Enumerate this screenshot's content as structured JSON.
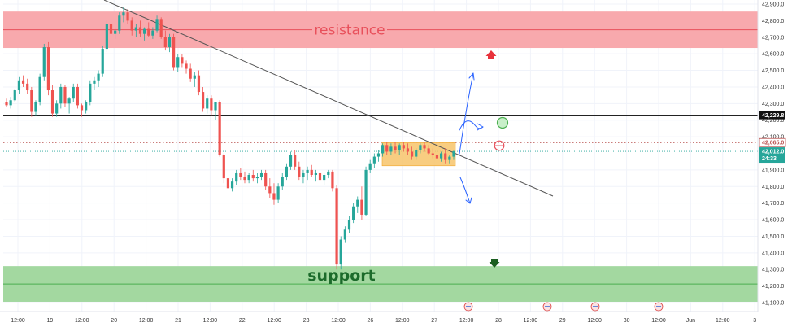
{
  "chart_data": {
    "type": "candlestick",
    "ylim": [
      41100,
      42900
    ],
    "y_ticks": [
      "42,900.0",
      "42,800.0",
      "42,700.0",
      "42,600.0",
      "42,500.0",
      "42,400.0",
      "42,300.0",
      "42,200.0",
      "42,100.0",
      "41,900.0",
      "41,800.0",
      "41,700.0",
      "41,600.0",
      "41,500.0",
      "41,400.0",
      "41,300.0",
      "41,200.0",
      "41,100.0"
    ],
    "x_ticks": [
      "12:00",
      "19",
      "12:00",
      "20",
      "12:00",
      "21",
      "12:00",
      "22",
      "12:00",
      "23",
      "12:00",
      "26",
      "12:00",
      "27",
      "12:00",
      "28",
      "12:00",
      "29",
      "12:00",
      "30",
      "12:00",
      "Jun",
      "12:00",
      "3"
    ],
    "zones": {
      "resistance": {
        "label": "resistance",
        "low": 42635,
        "high": 42855,
        "mid": 42745
      },
      "support": {
        "label": "support",
        "low": 41105,
        "high": 41320,
        "mid": 41212
      }
    },
    "level_line": {
      "value": 42229.8,
      "label": "42,229.8"
    },
    "dotted_level": {
      "value": 42065,
      "label": "42,065.0"
    },
    "current_price": {
      "value": 42012.0,
      "label": "42,012.0",
      "countdown": "24:33"
    },
    "trendline": {
      "start": [
        0,
        42950
      ],
      "end": [
        52,
        41764
      ]
    },
    "consolidation_box": {
      "x_start": 35.0,
      "x_end": 41.5,
      "low": 41925,
      "high": 42065
    },
    "candles": [
      [
        42310,
        42330,
        42280,
        42290
      ],
      [
        42290,
        42340,
        42270,
        42320
      ],
      [
        42320,
        42390,
        42310,
        42380
      ],
      [
        42380,
        42460,
        42360,
        42440
      ],
      [
        42440,
        42470,
        42400,
        42420
      ],
      [
        42420,
        42450,
        42360,
        42380
      ],
      [
        42380,
        42400,
        42220,
        42250
      ],
      [
        42250,
        42320,
        42230,
        42310
      ],
      [
        42310,
        42480,
        42290,
        42460
      ],
      [
        42460,
        42660,
        42440,
        42640
      ],
      [
        42640,
        42670,
        42350,
        42380
      ],
      [
        42380,
        42410,
        42220,
        42240
      ],
      [
        42240,
        42320,
        42220,
        42300
      ],
      [
        42300,
        42420,
        42270,
        42400
      ],
      [
        42400,
        42410,
        42280,
        42300
      ],
      [
        42300,
        42340,
        42240,
        42330
      ],
      [
        42330,
        42420,
        42310,
        42400
      ],
      [
        42400,
        42420,
        42270,
        42290
      ],
      [
        42290,
        42300,
        42220,
        42260
      ],
      [
        42260,
        42320,
        42240,
        42310
      ],
      [
        42310,
        42440,
        42290,
        42420
      ],
      [
        42420,
        42460,
        42380,
        42440
      ],
      [
        42440,
        42500,
        42400,
        42480
      ],
      [
        42480,
        42650,
        42460,
        42630
      ],
      [
        42630,
        42800,
        42610,
        42780
      ],
      [
        42780,
        42830,
        42700,
        42720
      ],
      [
        42720,
        42760,
        42690,
        42740
      ],
      [
        42740,
        42850,
        42720,
        42830
      ],
      [
        42830,
        42880,
        42790,
        42850
      ],
      [
        42850,
        42870,
        42780,
        42800
      ],
      [
        42800,
        42820,
        42710,
        42740
      ],
      [
        42740,
        42780,
        42700,
        42760
      ],
      [
        42760,
        42800,
        42700,
        42720
      ],
      [
        42720,
        42760,
        42680,
        42750
      ],
      [
        42750,
        42790,
        42700,
        42710
      ],
      [
        42710,
        42760,
        42690,
        42740
      ],
      [
        42740,
        42830,
        42730,
        42810
      ],
      [
        42810,
        42820,
        42690,
        42700
      ],
      [
        42700,
        42740,
        42620,
        42640
      ],
      [
        42640,
        42720,
        42610,
        42700
      ],
      [
        42700,
        42720,
        42500,
        42520
      ],
      [
        42520,
        42600,
        42490,
        42580
      ],
      [
        42580,
        42600,
        42520,
        42540
      ],
      [
        42540,
        42560,
        42480,
        42510
      ],
      [
        42510,
        42540,
        42430,
        42450
      ],
      [
        42450,
        42490,
        42400,
        42470
      ],
      [
        42470,
        42500,
        42350,
        42370
      ],
      [
        42370,
        42400,
        42250,
        42270
      ],
      [
        42270,
        42350,
        42240,
        42330
      ],
      [
        42330,
        42350,
        42230,
        42260
      ],
      [
        42260,
        42300,
        42200,
        42310
      ],
      [
        42310,
        42320,
        41980,
        41990
      ],
      [
        41990,
        42000,
        41820,
        41850
      ],
      [
        41850,
        41900,
        41770,
        41790
      ],
      [
        41790,
        41850,
        41770,
        41830
      ],
      [
        41830,
        41900,
        41810,
        41880
      ],
      [
        41880,
        41910,
        41840,
        41860
      ],
      [
        41860,
        41890,
        41820,
        41840
      ],
      [
        41840,
        41880,
        41820,
        41870
      ],
      [
        41870,
        41900,
        41830,
        41850
      ],
      [
        41850,
        41880,
        41820,
        41860
      ],
      [
        41860,
        41900,
        41840,
        41880
      ],
      [
        41880,
        41900,
        41780,
        41800
      ],
      [
        41800,
        41850,
        41730,
        41760
      ],
      [
        41760,
        41820,
        41690,
        41720
      ],
      [
        41720,
        41820,
        41700,
        41800
      ],
      [
        41800,
        41880,
        41780,
        41860
      ],
      [
        41860,
        41940,
        41840,
        41920
      ],
      [
        41920,
        42010,
        41900,
        41990
      ],
      [
        41990,
        42020,
        41900,
        41920
      ],
      [
        41920,
        41950,
        41840,
        41860
      ],
      [
        41860,
        41900,
        41820,
        41880
      ],
      [
        41880,
        41920,
        41840,
        41900
      ],
      [
        41900,
        41930,
        41860,
        41870
      ],
      [
        41870,
        41900,
        41830,
        41880
      ],
      [
        41880,
        41910,
        41820,
        41840
      ],
      [
        41840,
        41880,
        41810,
        41870
      ],
      [
        41870,
        41900,
        41850,
        41890
      ],
      [
        41890,
        41900,
        41770,
        41790
      ],
      [
        41790,
        41810,
        41300,
        41330
      ],
      [
        41330,
        41500,
        41300,
        41480
      ],
      [
        41480,
        41560,
        41460,
        41540
      ],
      [
        41540,
        41620,
        41520,
        41600
      ],
      [
        41600,
        41700,
        41580,
        41680
      ],
      [
        41680,
        41740,
        41640,
        41720
      ],
      [
        41720,
        41800,
        41600,
        41630
      ],
      [
        41630,
        41920,
        41620,
        41900
      ],
      [
        41900,
        41960,
        41880,
        41940
      ],
      [
        41940,
        42000,
        41910,
        41980
      ],
      [
        41980,
        42020,
        41950,
        42000
      ],
      [
        42000,
        42060,
        41980,
        42050
      ],
      [
        42050,
        42070,
        41990,
        42010
      ],
      [
        42010,
        42060,
        41990,
        42040
      ],
      [
        42040,
        42070,
        42000,
        42020
      ],
      [
        42020,
        42060,
        41990,
        42050
      ],
      [
        42050,
        42070,
        42010,
        42030
      ],
      [
        42030,
        42060,
        41990,
        42010
      ],
      [
        42010,
        42040,
        41960,
        41980
      ],
      [
        41980,
        42030,
        41960,
        42020
      ],
      [
        42020,
        42060,
        42000,
        42050
      ],
      [
        42050,
        42070,
        42010,
        42030
      ],
      [
        42030,
        42050,
        41990,
        42000
      ],
      [
        42000,
        42030,
        41970,
        41990
      ],
      [
        41990,
        42020,
        41950,
        41970
      ],
      [
        41970,
        42010,
        41950,
        42000
      ],
      [
        42000,
        42030,
        41940,
        41960
      ],
      [
        41960,
        41990,
        41940,
        41980
      ],
      [
        41980,
        42020,
        41960,
        42012
      ]
    ]
  },
  "markers": {
    "up_arrow_color": "#e8323c",
    "down_arrow_color": "#1b5e20",
    "green_circle_color": "#4caf50",
    "red_circle_color": "#e8505b"
  },
  "colors": {
    "up": "#26a69a",
    "down": "#ef5350",
    "resistance_fill": "#f8a9ad",
    "support_fill": "#a3d8a0",
    "box_fill": "#f7c46b",
    "forecast": "#2962ff"
  }
}
